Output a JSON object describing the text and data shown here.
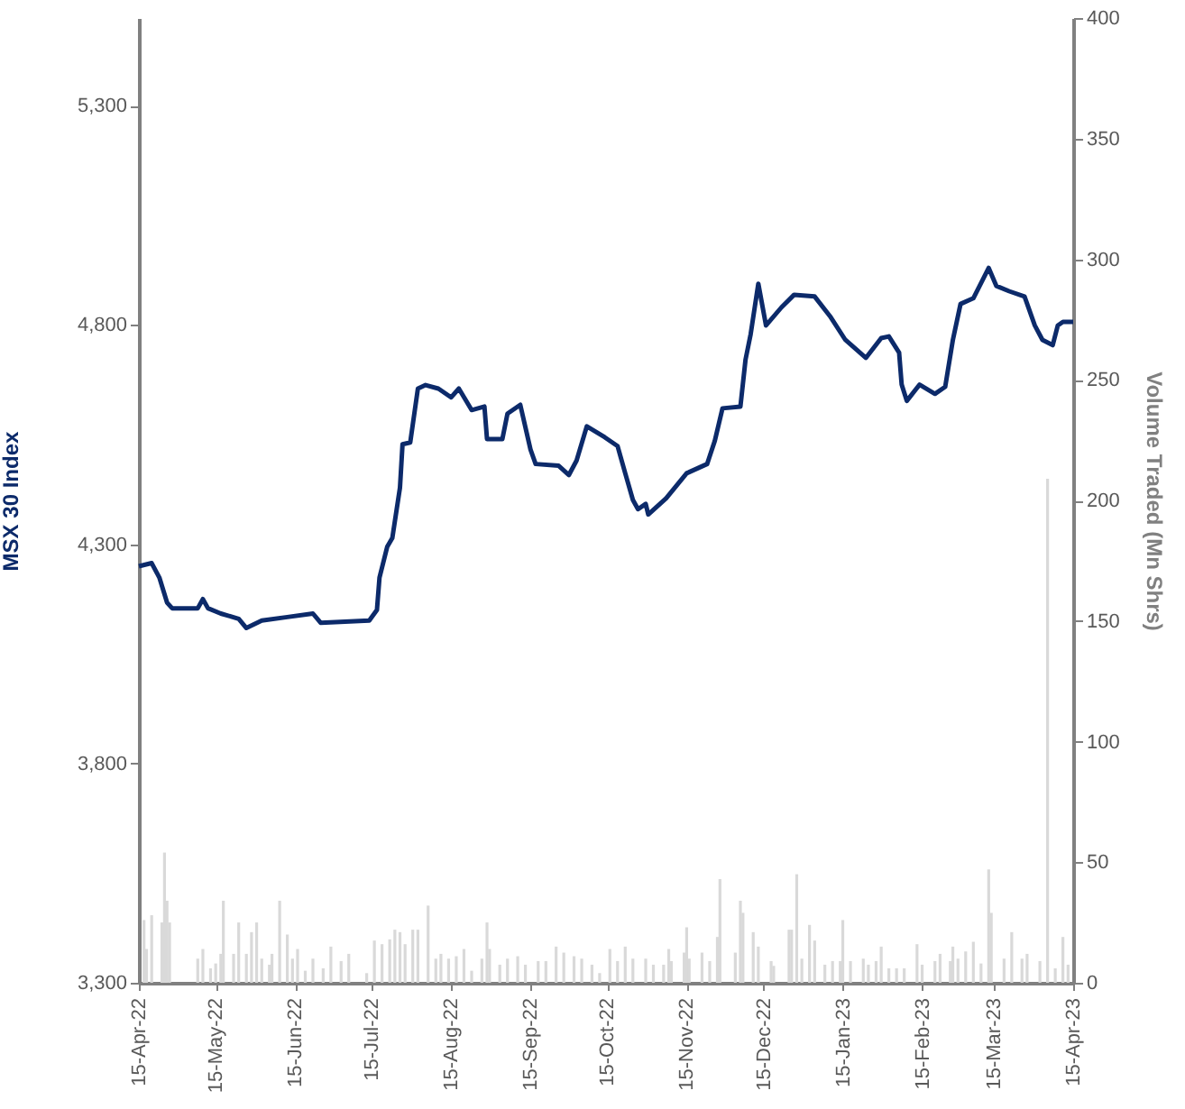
{
  "chart_data": {
    "type": "line",
    "ylabel": "MSX 30 Index",
    "y2label": "Volume Traded (Mn Shrs)",
    "xlim": [
      "2022-04-15",
      "2023-04-15"
    ],
    "xticks": [
      {
        "value": "2022-04-15",
        "label": "15-Apr-22"
      },
      {
        "value": "2022-05-15",
        "label": "15-May-22"
      },
      {
        "value": "2022-06-15",
        "label": "15-Jun-22"
      },
      {
        "value": "2022-07-15",
        "label": "15-Jul-22"
      },
      {
        "value": "2022-08-15",
        "label": "15-Aug-22"
      },
      {
        "value": "2022-09-15",
        "label": "15-Sep-22"
      },
      {
        "value": "2022-10-15",
        "label": "15-Oct-22"
      },
      {
        "value": "2022-11-15",
        "label": "15-Nov-22"
      },
      {
        "value": "2022-12-15",
        "label": "15-Dec-22"
      },
      {
        "value": "2023-01-15",
        "label": "15-Jan-23"
      },
      {
        "value": "2023-02-15",
        "label": "15-Feb-23"
      },
      {
        "value": "2023-03-15",
        "label": "15-Mar-23"
      },
      {
        "value": "2023-04-15",
        "label": "15-Apr-23"
      }
    ],
    "ylim": [
      3300,
      5500
    ],
    "yticks": [
      {
        "value": 3300,
        "label": "3,300"
      },
      {
        "value": 3800,
        "label": "3,800"
      },
      {
        "value": 4300,
        "label": "4,300"
      },
      {
        "value": 4800,
        "label": "4,800"
      },
      {
        "value": 5300,
        "label": "5,300"
      }
    ],
    "y2lim": [
      0,
      400
    ],
    "y2ticks": [
      0,
      50,
      100,
      150,
      200,
      250,
      300,
      350,
      400
    ],
    "series": [
      {
        "type": "bar",
        "axis": "y2",
        "color": "#d9d9d9",
        "x": [
          "2022-04-17",
          "2022-04-18",
          "2022-04-20",
          "2022-04-24",
          "2022-04-25",
          "2022-04-26",
          "2022-04-27",
          "2022-05-08",
          "2022-05-10",
          "2022-05-13",
          "2022-05-15",
          "2022-05-17",
          "2022-05-18",
          "2022-05-22",
          "2022-05-24",
          "2022-05-27",
          "2022-05-29",
          "2022-05-31",
          "2022-06-02",
          "2022-06-05",
          "2022-06-06",
          "2022-06-09",
          "2022-06-12",
          "2022-06-14",
          "2022-06-16",
          "2022-06-19",
          "2022-06-22",
          "2022-06-26",
          "2022-06-29",
          "2022-07-03",
          "2022-07-06",
          "2022-07-13",
          "2022-07-16",
          "2022-07-19",
          "2022-07-22",
          "2022-07-24",
          "2022-07-26",
          "2022-07-28",
          "2022-07-31",
          "2022-08-02",
          "2022-08-06",
          "2022-08-09",
          "2022-08-11",
          "2022-08-14",
          "2022-08-17",
          "2022-08-20",
          "2022-08-23",
          "2022-08-27",
          "2022-08-29",
          "2022-08-30",
          "2022-09-03",
          "2022-09-06",
          "2022-09-10",
          "2022-09-13",
          "2022-09-18",
          "2022-09-21",
          "2022-09-25",
          "2022-09-28",
          "2022-10-02",
          "2022-10-05",
          "2022-10-09",
          "2022-10-12",
          "2022-10-16",
          "2022-10-19",
          "2022-10-22",
          "2022-10-25",
          "2022-10-30",
          "2022-11-02",
          "2022-11-06",
          "2022-11-08",
          "2022-11-09",
          "2022-11-14",
          "2022-11-15",
          "2022-11-16",
          "2022-11-21",
          "2022-11-24",
          "2022-11-27",
          "2022-11-28",
          "2022-12-04",
          "2022-12-06",
          "2022-12-07",
          "2022-12-11",
          "2022-12-13",
          "2022-12-18",
          "2022-12-19",
          "2022-12-25",
          "2022-12-26",
          "2022-12-28",
          "2022-12-30",
          "2023-01-02",
          "2023-01-04",
          "2023-01-08",
          "2023-01-11",
          "2023-01-14",
          "2023-01-15",
          "2023-01-18",
          "2023-01-23",
          "2023-01-25",
          "2023-01-28",
          "2023-01-30",
          "2023-02-02",
          "2023-02-05",
          "2023-02-08",
          "2023-02-13",
          "2023-02-15",
          "2023-02-20",
          "2023-02-22",
          "2023-02-26",
          "2023-02-27",
          "2023-03-01",
          "2023-03-04",
          "2023-03-07",
          "2023-03-10",
          "2023-03-13",
          "2023-03-14",
          "2023-03-19",
          "2023-03-22",
          "2023-03-26",
          "2023-03-28",
          "2023-04-02",
          "2023-04-05",
          "2023-04-08",
          "2023-04-11",
          "2023-04-13"
        ],
        "values": [
          26,
          14,
          28,
          25,
          54,
          34,
          25,
          10,
          14,
          6,
          8,
          12,
          34,
          12,
          25,
          12,
          21,
          25,
          10,
          7.5,
          12,
          34,
          20,
          10,
          14,
          5,
          10,
          6,
          15,
          9,
          12,
          4,
          17.5,
          16,
          18,
          22,
          21,
          16,
          22,
          22,
          32,
          10,
          12,
          10,
          11,
          14,
          5,
          10,
          25,
          14,
          7.5,
          10,
          11,
          7.5,
          9,
          9,
          15,
          12.5,
          11,
          10,
          7.5,
          4,
          14,
          9,
          15,
          10,
          10,
          7.5,
          7.5,
          14,
          9,
          12.5,
          23,
          10,
          12.5,
          9,
          19,
          43,
          12.5,
          34,
          29,
          21,
          15,
          9,
          7,
          22,
          22,
          45,
          10,
          24,
          17.5,
          7.5,
          9,
          9,
          26,
          9,
          10,
          7.5,
          9,
          15,
          6,
          6,
          6,
          16,
          7.5,
          9,
          12,
          9,
          15,
          10,
          13,
          17,
          8,
          47,
          29,
          10,
          21,
          10,
          12,
          9,
          209,
          6,
          19,
          7.5
        ]
      },
      {
        "color": "#0c2a6a",
        "x": [
          "2022-04-15",
          "2022-04-20",
          "2022-04-23",
          "2022-04-26",
          "2022-04-28",
          "2022-05-08",
          "2022-05-10",
          "2022-05-12",
          "2022-05-17",
          "2022-05-24",
          "2022-05-27",
          "2022-06-02",
          "2022-06-12",
          "2022-06-22",
          "2022-06-25",
          "2022-07-14",
          "2022-07-17",
          "2022-07-18",
          "2022-07-21",
          "2022-07-23",
          "2022-07-26",
          "2022-07-27",
          "2022-07-30",
          "2022-08-02",
          "2022-08-05",
          "2022-08-10",
          "2022-08-15",
          "2022-08-18",
          "2022-08-23",
          "2022-08-28",
          "2022-08-29",
          "2022-09-04",
          "2022-09-06",
          "2022-09-11",
          "2022-09-15",
          "2022-09-17",
          "2022-09-26",
          "2022-09-30",
          "2022-10-03",
          "2022-10-07",
          "2022-10-14",
          "2022-10-19",
          "2022-10-22",
          "2022-10-25",
          "2022-10-27",
          "2022-10-30",
          "2022-10-31",
          "2022-11-07",
          "2022-11-15",
          "2022-11-23",
          "2022-11-26",
          "2022-11-29",
          "2022-12-06",
          "2022-12-08",
          "2022-12-10",
          "2022-12-13",
          "2022-12-16",
          "2022-12-22",
          "2022-12-27",
          "2023-01-04",
          "2023-01-10",
          "2023-01-16",
          "2023-01-24",
          "2023-01-30",
          "2023-02-02",
          "2023-02-06",
          "2023-02-07",
          "2023-02-09",
          "2023-02-14",
          "2023-02-20",
          "2023-02-24",
          "2023-02-27",
          "2023-03-02",
          "2023-03-07",
          "2023-03-13",
          "2023-03-16",
          "2023-03-21",
          "2023-03-27",
          "2023-03-31",
          "2023-04-03",
          "2023-04-07",
          "2023-04-09",
          "2023-04-11",
          "2023-04-15"
        ],
        "values": [
          4250,
          4257,
          4224,
          4167,
          4154,
          4154,
          4175,
          4154,
          4142,
          4130,
          4109,
          4126,
          4134,
          4142,
          4121,
          4126,
          4150,
          4224,
          4294,
          4314,
          4429,
          4528,
          4532,
          4655,
          4663,
          4655,
          4635,
          4655,
          4606,
          4614,
          4540,
          4540,
          4598,
          4618,
          4516,
          4483,
          4479,
          4458,
          4491,
          4569,
          4544,
          4524,
          4462,
          4401,
          4380,
          4392,
          4368,
          4405,
          4462,
          4483,
          4536,
          4610,
          4614,
          4721,
          4779,
          4894,
          4799,
          4840,
          4869,
          4865,
          4820,
          4766,
          4725,
          4770,
          4774,
          4737,
          4664,
          4627,
          4664,
          4643,
          4659,
          4766,
          4848,
          4861,
          4930,
          4889,
          4877,
          4865,
          4799,
          4766,
          4754,
          4799,
          4807,
          4807
        ]
      }
    ]
  }
}
